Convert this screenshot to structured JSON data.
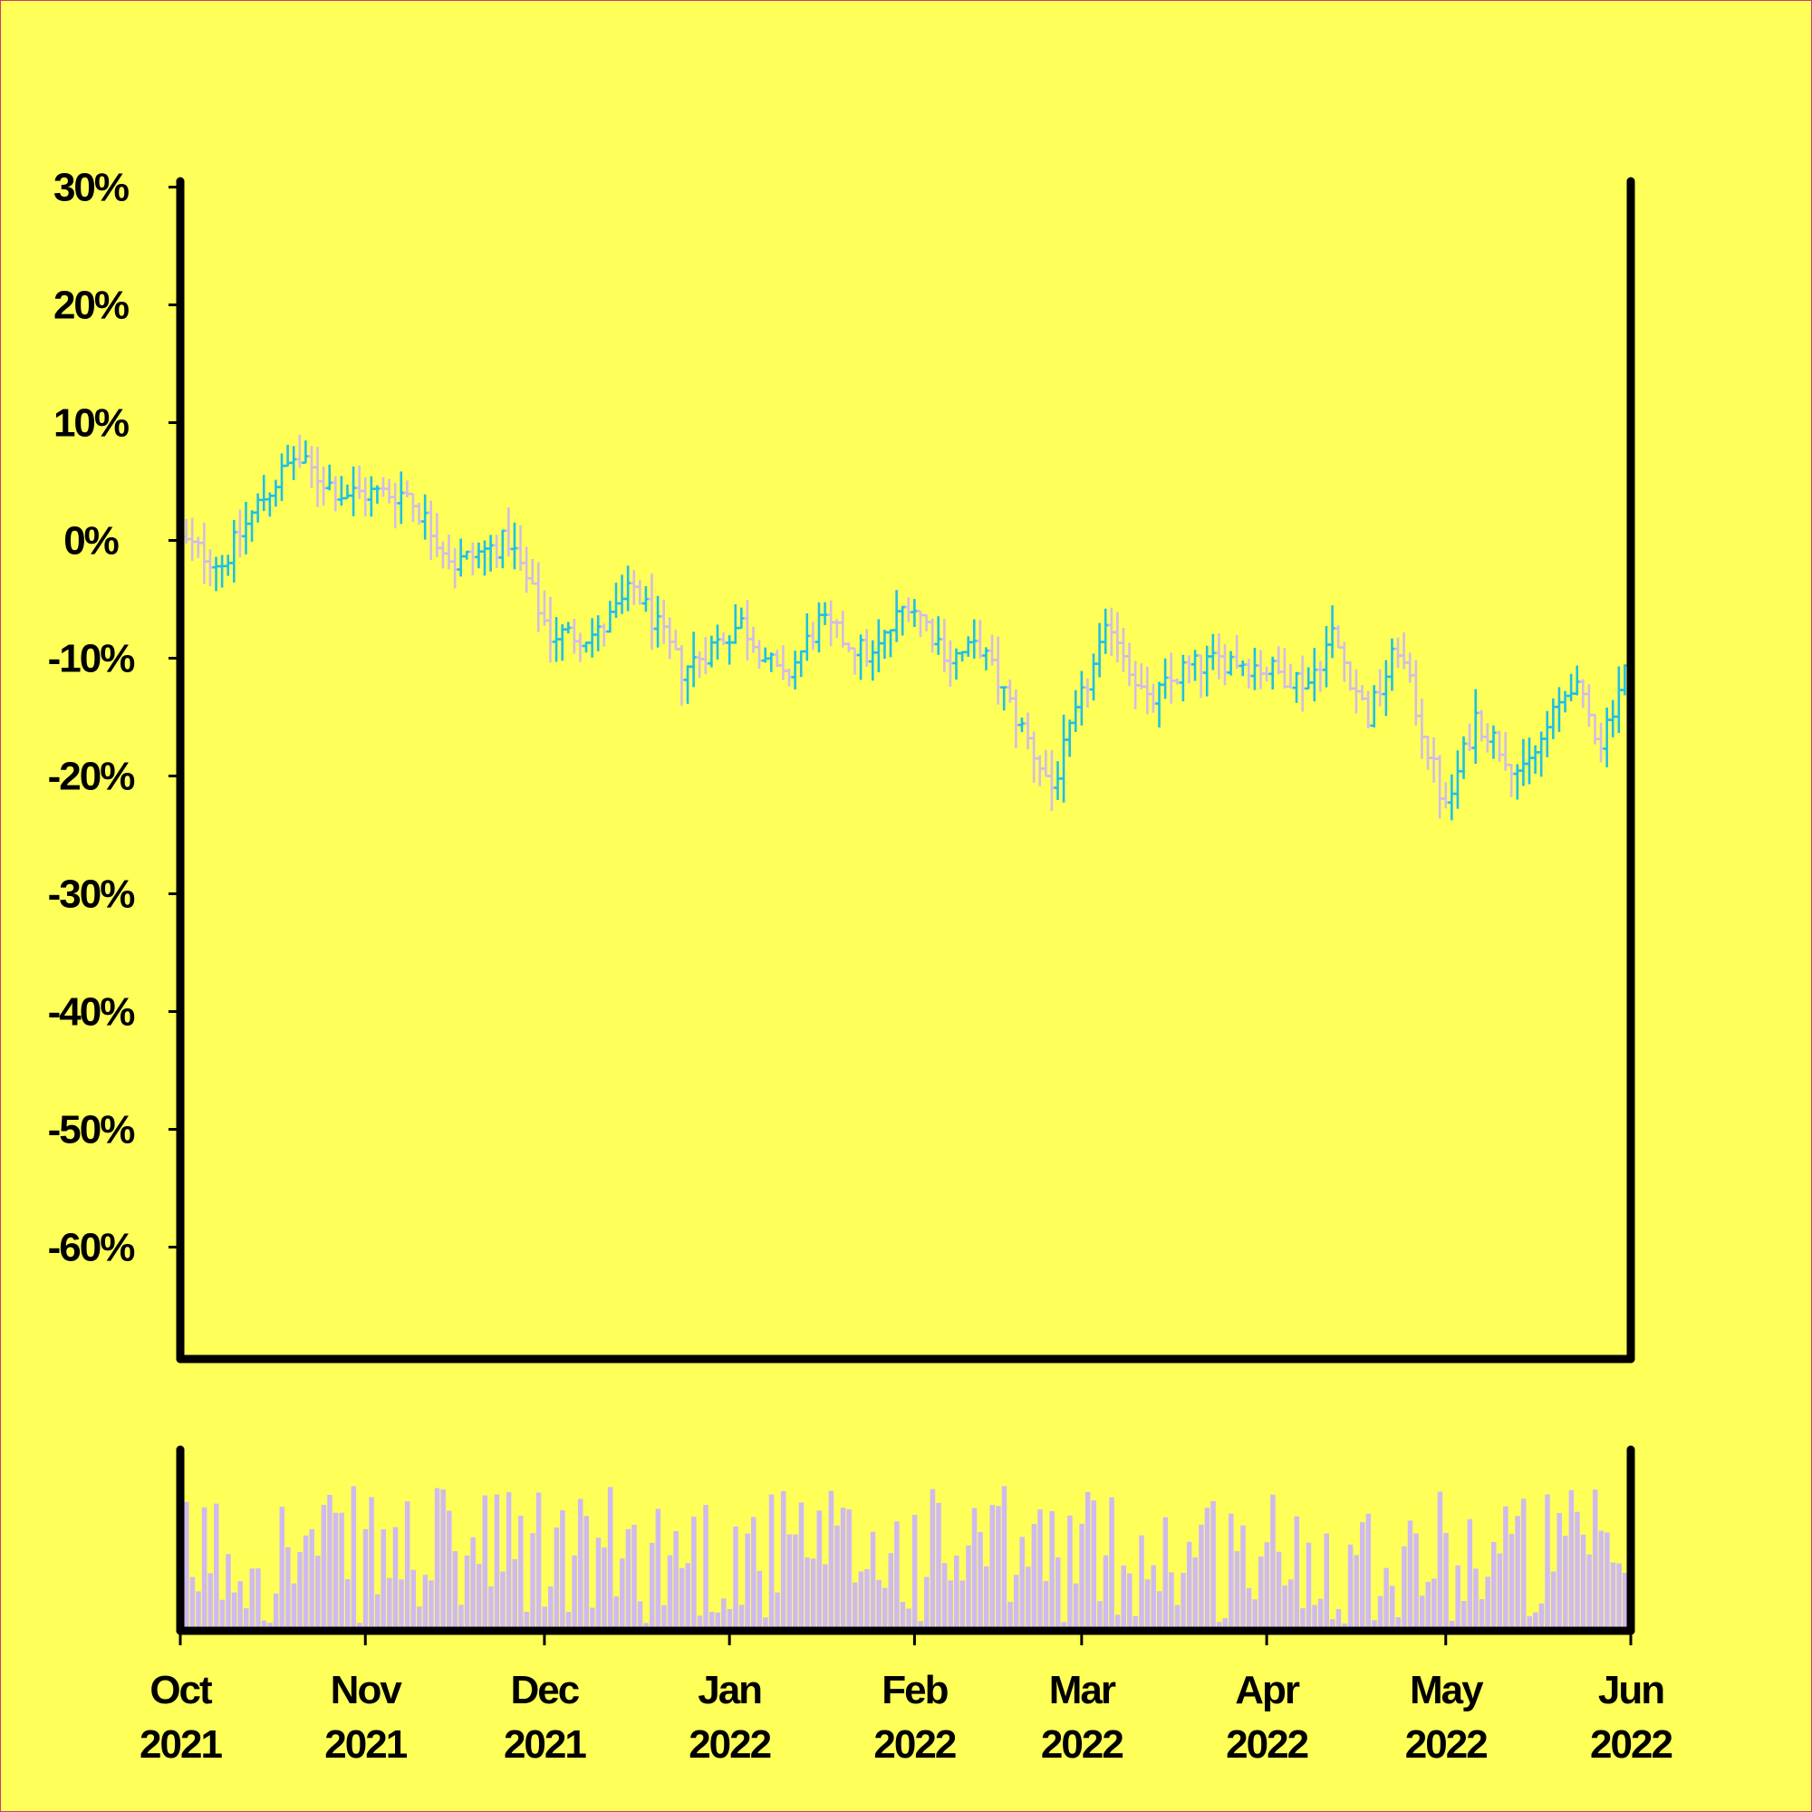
{
  "chart_data": {
    "type": "ohlc",
    "y_axis": {
      "ticks": [
        "30%",
        "20%",
        "10%",
        "0%",
        "-10%",
        "-20%",
        "-30%",
        "-40%",
        "-50%",
        "-60%"
      ],
      "tick_values": [
        30,
        20,
        10,
        0,
        -10,
        -20,
        -30,
        -40,
        -50,
        -60
      ],
      "range": [
        -69.5,
        30.5
      ],
      "unit": "%"
    },
    "x_axis": {
      "range": [
        "2021-10-01",
        "2022-06-01"
      ],
      "ticks": [
        {
          "date": "2021-10-01",
          "month": "Oct",
          "year": "2021"
        },
        {
          "date": "2021-11-01",
          "month": "Nov",
          "year": "2021"
        },
        {
          "date": "2021-12-01",
          "month": "Dec",
          "year": "2021"
        },
        {
          "date": "2022-01-01",
          "month": "Jan",
          "year": "2022"
        },
        {
          "date": "2022-02-01",
          "month": "Feb",
          "year": "2022"
        },
        {
          "date": "2022-03-01",
          "month": "Mar",
          "year": "2022"
        },
        {
          "date": "2022-04-01",
          "month": "Apr",
          "year": "2022"
        },
        {
          "date": "2022-05-01",
          "month": "May",
          "year": "2022"
        },
        {
          "date": "2022-06-01",
          "month": "Jun",
          "year": "2022"
        }
      ]
    },
    "colors": {
      "background": "#ffff5a",
      "up": "#1ec0e6",
      "down": "#d2bce6",
      "volume": "#cfbaf0",
      "axis": "#000000"
    },
    "price_key_points": [
      {
        "date": "2021-10-01",
        "value": 0
      },
      {
        "date": "2021-10-08",
        "value": -2
      },
      {
        "date": "2021-10-14",
        "value": 3
      },
      {
        "date": "2021-10-20",
        "value": 7
      },
      {
        "date": "2021-10-28",
        "value": 4
      },
      {
        "date": "2021-11-08",
        "value": 4
      },
      {
        "date": "2021-11-16",
        "value": -2
      },
      {
        "date": "2021-11-25",
        "value": 0
      },
      {
        "date": "2021-12-02",
        "value": -8
      },
      {
        "date": "2021-12-10",
        "value": -8
      },
      {
        "date": "2021-12-16",
        "value": -4
      },
      {
        "date": "2021-12-24",
        "value": -11
      },
      {
        "date": "2022-01-03",
        "value": -7
      },
      {
        "date": "2022-01-10",
        "value": -12
      },
      {
        "date": "2022-01-16",
        "value": -7
      },
      {
        "date": "2022-01-25",
        "value": -10
      },
      {
        "date": "2022-01-31",
        "value": -5
      },
      {
        "date": "2022-02-07",
        "value": -10
      },
      {
        "date": "2022-02-12",
        "value": -9
      },
      {
        "date": "2022-02-24",
        "value": -21
      },
      {
        "date": "2022-03-02",
        "value": -12
      },
      {
        "date": "2022-03-06",
        "value": -7
      },
      {
        "date": "2022-03-12",
        "value": -14
      },
      {
        "date": "2022-03-18",
        "value": -11
      },
      {
        "date": "2022-03-26",
        "value": -10
      },
      {
        "date": "2022-04-08",
        "value": -12
      },
      {
        "date": "2022-04-12",
        "value": -8
      },
      {
        "date": "2022-04-18",
        "value": -15
      },
      {
        "date": "2022-04-23",
        "value": -9
      },
      {
        "date": "2022-05-01",
        "value": -23
      },
      {
        "date": "2022-05-06",
        "value": -15
      },
      {
        "date": "2022-05-14",
        "value": -20
      },
      {
        "date": "2022-05-22",
        "value": -12
      },
      {
        "date": "2022-05-27",
        "value": -17
      },
      {
        "date": "2022-05-31",
        "value": -11
      }
    ]
  }
}
